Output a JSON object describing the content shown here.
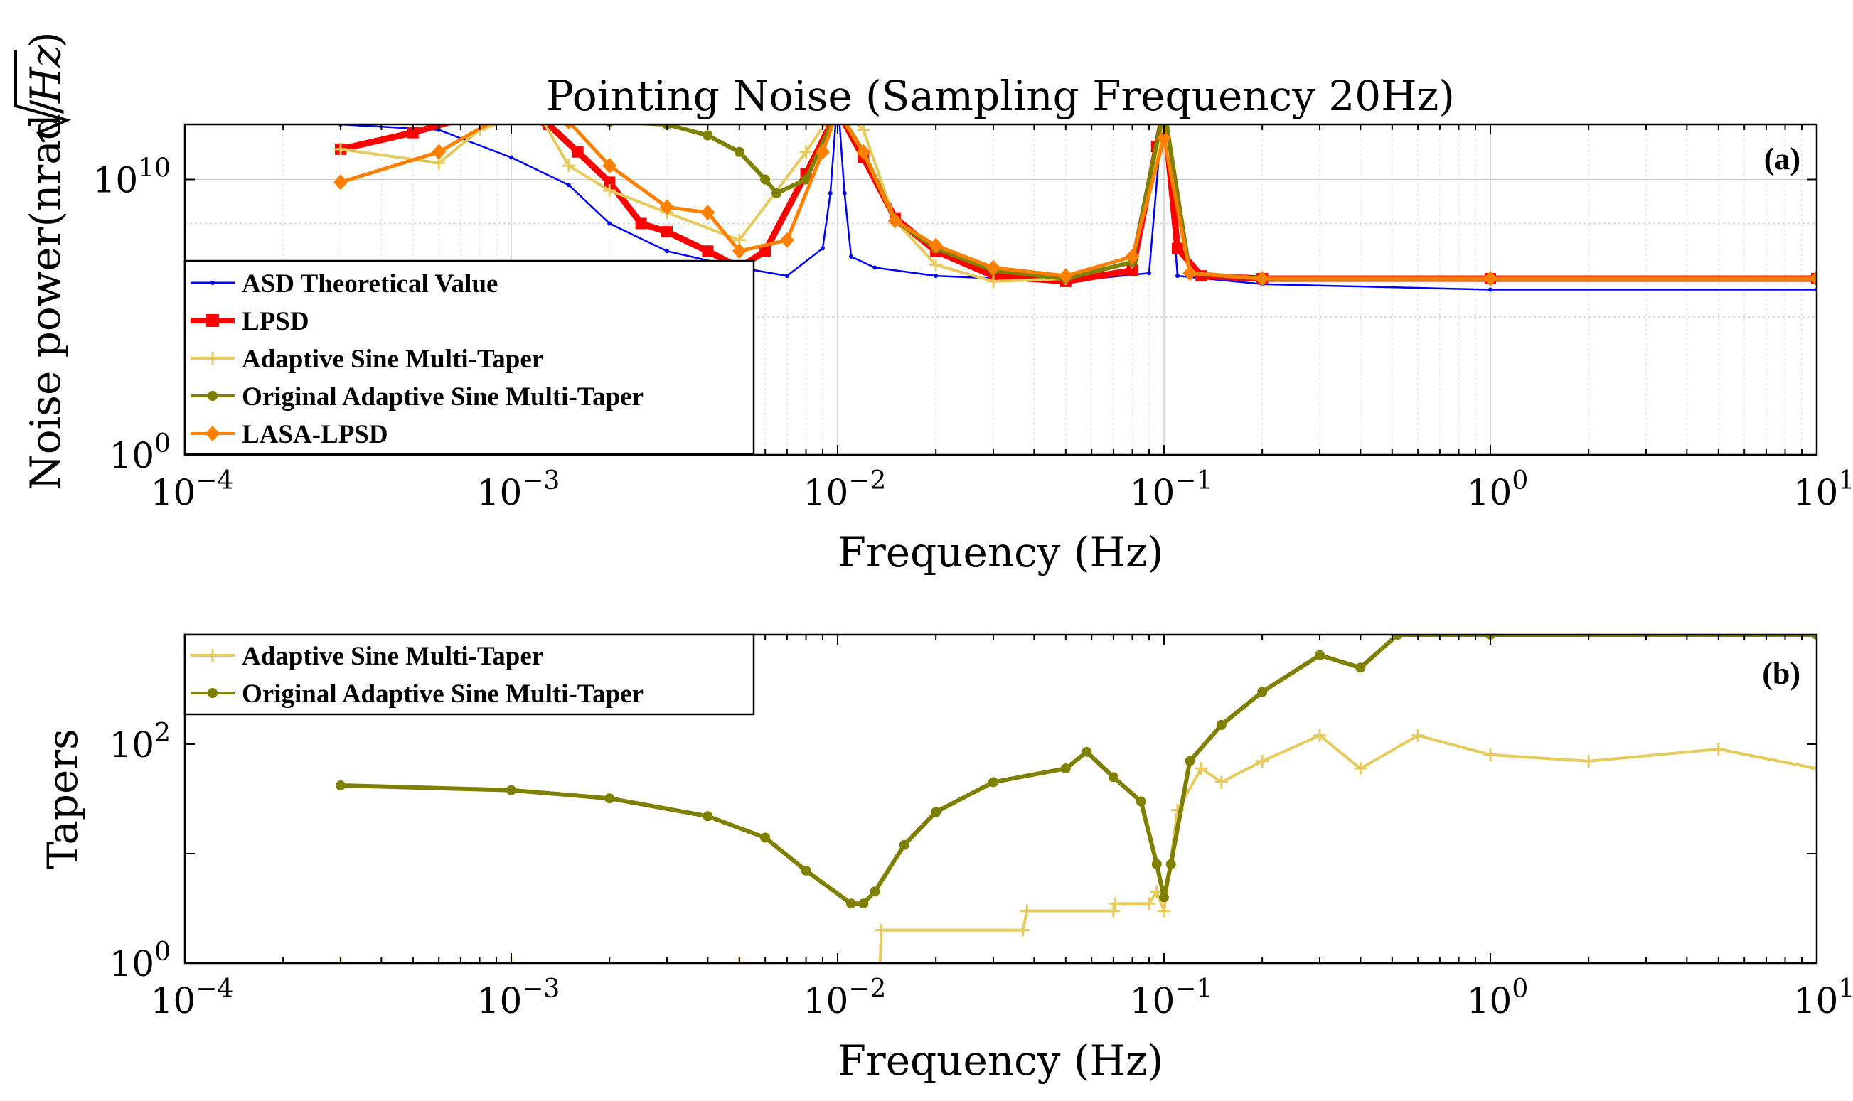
{
  "figure": {
    "title": "Pointing Noise (Sampling Frequency 20Hz)"
  },
  "chart_data": [
    {
      "type": "line",
      "panel_label": "(a)",
      "xlabel": "Frequency (Hz)",
      "ylabel": "Noise power(nrad/√Hz)",
      "ylabel_main": "Noise power(nrad/",
      "ylabel_radicand": "Hz",
      "ylabel_close": ")",
      "xscale": "log",
      "yscale": "log",
      "xlim": [
        0.0001,
        10
      ],
      "ylim_exponent": [
        0,
        12
      ],
      "x_tick_labels": [
        {
          "base": "10",
          "exp": "−4",
          "value": 0.0001
        },
        {
          "base": "10",
          "exp": "−3",
          "value": 0.001
        },
        {
          "base": "10",
          "exp": "−2",
          "value": 0.01
        },
        {
          "base": "10",
          "exp": "−1",
          "value": 0.1
        },
        {
          "base": "10",
          "exp": "0",
          "value": 1
        },
        {
          "base": "10",
          "exp": "1",
          "value": 10
        }
      ],
      "y_tick_labels": [
        {
          "base": "10",
          "exp": "0",
          "value_exp": 0
        },
        {
          "base": "10",
          "exp": "10",
          "value_exp": 10
        }
      ],
      "legend_position": "lower-left inside",
      "series": [
        {
          "name": "ASD Theoretical Value",
          "color": "#0000ff",
          "marker": "dot",
          "x": [
            0.0003,
            0.0006,
            0.001,
            0.0015,
            0.002,
            0.003,
            0.005,
            0.007,
            0.009,
            0.0095,
            0.01,
            0.0105,
            0.011,
            0.013,
            0.02,
            0.05,
            0.09,
            0.1,
            0.11,
            0.2,
            1,
            10
          ],
          "log10_y": [
            12,
            11.8,
            10.8,
            9.8,
            8.4,
            7.4,
            6.8,
            6.5,
            7.5,
            9.5,
            13,
            9.5,
            7.2,
            6.8,
            6.5,
            6.3,
            6.6,
            13,
            6.5,
            6.2,
            6.0,
            6.0
          ]
        },
        {
          "name": "LPSD",
          "color": "#ff0000",
          "marker": "square",
          "x": [
            0.0003,
            0.0005,
            0.0007,
            0.001,
            0.0013,
            0.0016,
            0.002,
            0.0025,
            0.003,
            0.004,
            0.005,
            0.006,
            0.008,
            0.01,
            0.012,
            0.015,
            0.02,
            0.03,
            0.05,
            0.08,
            0.095,
            0.1,
            0.11,
            0.13,
            0.2,
            1,
            10
          ],
          "log10_y": [
            11.1,
            11.7,
            12.2,
            12.4,
            12.0,
            11.0,
            9.9,
            8.4,
            8.1,
            7.4,
            6.8,
            7.4,
            10.2,
            12.5,
            10.8,
            8.6,
            7.4,
            6.5,
            6.3,
            6.7,
            11.2,
            12.5,
            7.5,
            6.5,
            6.4,
            6.4,
            6.4
          ]
        },
        {
          "name": "Adaptive Sine Multi-Taper",
          "color": "#e6cb5c",
          "marker": "plus",
          "x": [
            0.0003,
            0.0006,
            0.0008,
            0.0012,
            0.0015,
            0.002,
            0.003,
            0.005,
            0.008,
            0.01,
            0.012,
            0.015,
            0.02,
            0.03,
            0.05,
            0.08,
            0.1,
            0.12,
            0.2,
            1,
            10
          ],
          "log10_y": [
            11.1,
            10.6,
            11.8,
            12.5,
            10.5,
            9.6,
            8.8,
            7.8,
            11.0,
            12.7,
            11.8,
            8.5,
            6.9,
            6.3,
            6.4,
            7.0,
            11.9,
            6.6,
            6.4,
            6.4,
            6.4
          ]
        },
        {
          "name": "Original Adaptive Sine Multi-Taper",
          "color": "#808000",
          "marker": "circle",
          "x": [
            0.0003,
            0.001,
            0.002,
            0.003,
            0.004,
            0.005,
            0.006,
            0.0065,
            0.008,
            0.01,
            0.012,
            0.015,
            0.02,
            0.03,
            0.05,
            0.08,
            0.1,
            0.12,
            0.2,
            1,
            10
          ],
          "log10_y": [
            12.2,
            12.2,
            12.1,
            12.0,
            11.6,
            11.0,
            10.0,
            9.5,
            10.0,
            12.5,
            11.0,
            8.5,
            7.5,
            6.7,
            6.4,
            7.0,
            12.6,
            6.6,
            6.4,
            6.4,
            6.4
          ]
        },
        {
          "name": "LASA-LPSD",
          "color": "#ff8000",
          "marker": "diamond",
          "x": [
            0.0003,
            0.0006,
            0.001,
            0.0015,
            0.002,
            0.003,
            0.004,
            0.005,
            0.007,
            0.009,
            0.01,
            0.012,
            0.015,
            0.02,
            0.03,
            0.05,
            0.08,
            0.1,
            0.12,
            0.2,
            1,
            10
          ],
          "log10_y": [
            9.9,
            11.0,
            12.5,
            12.1,
            10.5,
            9.0,
            8.8,
            7.4,
            7.8,
            11.0,
            12.5,
            11.0,
            8.5,
            7.6,
            6.8,
            6.5,
            7.2,
            11.5,
            6.6,
            6.4,
            6.4,
            6.4
          ]
        }
      ]
    },
    {
      "type": "line",
      "panel_label": "(b)",
      "xlabel": "Frequency (Hz)",
      "ylabel": "Tapers",
      "xscale": "log",
      "yscale": "log",
      "xlim": [
        0.0001,
        10
      ],
      "ylim": [
        1,
        1000
      ],
      "x_tick_labels": [
        {
          "base": "10",
          "exp": "−4",
          "value": 0.0001
        },
        {
          "base": "10",
          "exp": "−3",
          "value": 0.001
        },
        {
          "base": "10",
          "exp": "−2",
          "value": 0.01
        },
        {
          "base": "10",
          "exp": "−1",
          "value": 0.1
        },
        {
          "base": "10",
          "exp": "0",
          "value": 1
        },
        {
          "base": "10",
          "exp": "1",
          "value": 10
        }
      ],
      "y_tick_labels": [
        {
          "base": "10",
          "exp": "0",
          "value": 1
        },
        {
          "base": "10",
          "exp": "2",
          "value": 100
        }
      ],
      "legend_position": "top-left inside",
      "series": [
        {
          "name": "Adaptive Sine Multi-Taper",
          "color": "#e6cb5c",
          "marker": "plus",
          "x": [
            0.0003,
            0.001,
            0.005,
            0.0135,
            0.0136,
            0.037,
            0.038,
            0.07,
            0.071,
            0.09,
            0.095,
            0.1,
            0.11,
            0.13,
            0.15,
            0.2,
            0.3,
            0.4,
            0.6,
            1,
            2,
            5,
            10
          ],
          "y": [
            1,
            1,
            1,
            1,
            2,
            2,
            3,
            3,
            3.5,
            3.5,
            4.5,
            3,
            25,
            60,
            45,
            70,
            120,
            60,
            120,
            80,
            70,
            90,
            60
          ]
        },
        {
          "name": "Original Adaptive Sine Multi-Taper",
          "color": "#808000",
          "marker": "circle",
          "x": [
            0.0003,
            0.001,
            0.002,
            0.004,
            0.006,
            0.008,
            0.011,
            0.012,
            0.013,
            0.016,
            0.02,
            0.03,
            0.05,
            0.058,
            0.07,
            0.085,
            0.095,
            0.1,
            0.105,
            0.12,
            0.15,
            0.2,
            0.3,
            0.4,
            0.52,
            1,
            10
          ],
          "y": [
            42,
            38,
            32,
            22,
            14,
            7,
            3.5,
            3.5,
            4.5,
            12,
            24,
            45,
            60,
            85,
            50,
            30,
            8,
            4,
            8,
            70,
            150,
            300,
            650,
            500,
            1000,
            1000,
            1000
          ]
        }
      ]
    }
  ]
}
